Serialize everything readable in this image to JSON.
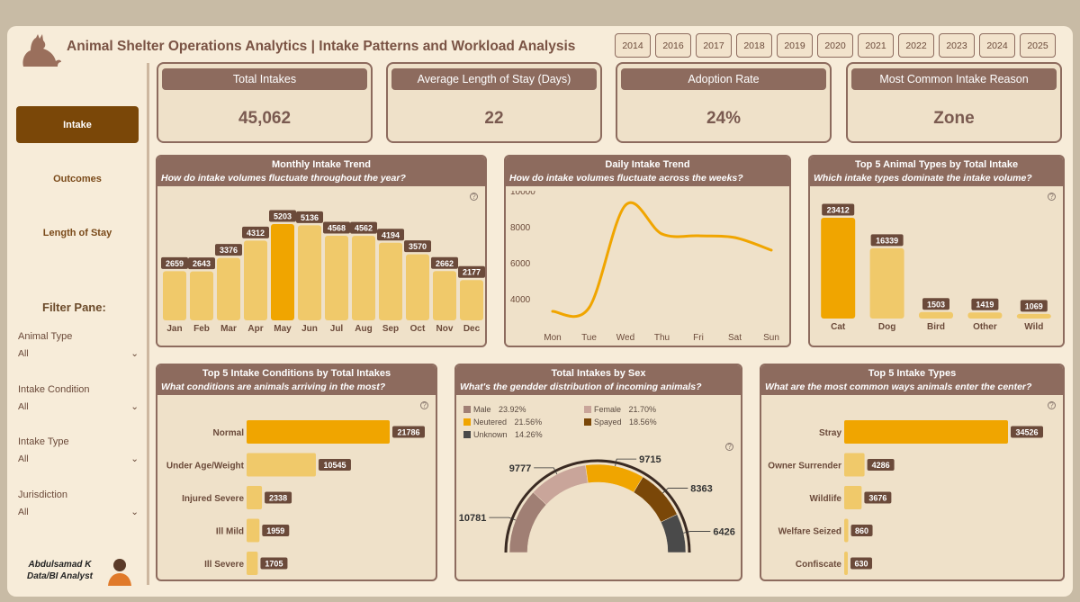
{
  "header": {
    "title": "Animal Shelter Operations Analytics | Intake Patterns and Workload Analysis",
    "years": [
      "2014",
      "2016",
      "2017",
      "2018",
      "2019",
      "2020",
      "2021",
      "2022",
      "2023",
      "2024",
      "2025"
    ]
  },
  "sidebar": {
    "nav": [
      "Intake",
      "Outcomes",
      "Length of Stay"
    ],
    "filter_title": "Filter Pane:",
    "filters": [
      {
        "label": "Animal Type",
        "value": "All"
      },
      {
        "label": "Intake Condition",
        "value": "All"
      },
      {
        "label": "Intake Type",
        "value": "All"
      },
      {
        "label": "Jurisdiction",
        "value": "All"
      }
    ],
    "author_name": "Abdulsamad K",
    "author_role": "Data/BI Analyst"
  },
  "kpis": [
    {
      "label": "Total Intakes",
      "value": "45,062"
    },
    {
      "label": "Average Length of Stay (Days)",
      "value": "22"
    },
    {
      "label": "Adoption Rate",
      "value": "24%"
    },
    {
      "label": "Most Common Intake Reason",
      "value": "Zone"
    }
  ],
  "colors": {
    "accent": "#f0a500",
    "bar": "#f0c96a",
    "brown": "#8d6b5e",
    "line": "#f0a500"
  },
  "chart_data": [
    {
      "type": "bar",
      "title": "Monthly Intake Trend",
      "subtitle": "How do intake volumes fluctuate throughout the year?",
      "categories": [
        "Jan",
        "Feb",
        "Mar",
        "Apr",
        "May",
        "Jun",
        "Jul",
        "Aug",
        "Sep",
        "Oct",
        "Nov",
        "Dec"
      ],
      "values": [
        2659,
        2643,
        3376,
        4312,
        5203,
        5136,
        4568,
        4562,
        4194,
        3570,
        2662,
        2177
      ],
      "highlight": "May",
      "ylim": [
        0,
        5203
      ]
    },
    {
      "type": "line",
      "title": "Daily Intake Trend",
      "subtitle": "How do intake volumes fluctuate across the weeks?",
      "x": [
        "Mon",
        "Tue",
        "Wed",
        "Thu",
        "Fri",
        "Sat",
        "Sun"
      ],
      "values": [
        3300,
        3500,
        9200,
        7600,
        7500,
        7400,
        6700
      ],
      "yticks": [
        4000,
        6000,
        8000,
        10000
      ],
      "ylim": [
        3000,
        10000
      ]
    },
    {
      "type": "bar",
      "title": "Top 5 Animal Types by Total Intake",
      "subtitle": "Which intake types dominate the intake volume?",
      "categories": [
        "Cat",
        "Dog",
        "Bird",
        "Other",
        "Wild"
      ],
      "values": [
        23412,
        16339,
        1503,
        1419,
        1069
      ],
      "highlight": "Cat"
    },
    {
      "type": "bar",
      "orientation": "horizontal",
      "title": "Top 5 Intake Conditions by Total Intakes",
      "subtitle": "What conditions are animals arriving in the most?",
      "categories": [
        "Normal",
        "Under Age/Weight",
        "Injured Severe",
        "Ill Mild",
        "Ill Severe"
      ],
      "values": [
        21786,
        10545,
        2338,
        1959,
        1705
      ],
      "highlight": "Normal"
    },
    {
      "type": "pie",
      "variant": "half-donut",
      "title": "Total Intakes by Sex",
      "subtitle": "What's the gendder distribution of incoming animals?",
      "slices": [
        {
          "name": "Male",
          "pct": "23.92%",
          "value": 10781,
          "color": "#a07f74"
        },
        {
          "name": "Female",
          "pct": "21.70%",
          "value": 9777,
          "color": "#c9a59a"
        },
        {
          "name": "Neutered",
          "pct": "21.56%",
          "value": 9715,
          "color": "#f0a500"
        },
        {
          "name": "Spayed",
          "pct": "18.56%",
          "value": 8363,
          "color": "#7a4708"
        },
        {
          "name": "Unknown",
          "pct": "14.26%",
          "value": 6426,
          "color": "#4a4a4a"
        }
      ]
    },
    {
      "type": "bar",
      "orientation": "horizontal",
      "title": "Top 5 Intake Types",
      "subtitle": "What are the most common ways animals enter the center?",
      "categories": [
        "Stray",
        "Owner Surrender",
        "Wildlife",
        "Welfare Seized",
        "Confiscate"
      ],
      "values": [
        34526,
        4286,
        3676,
        860,
        630
      ],
      "highlight": "Stray"
    }
  ]
}
